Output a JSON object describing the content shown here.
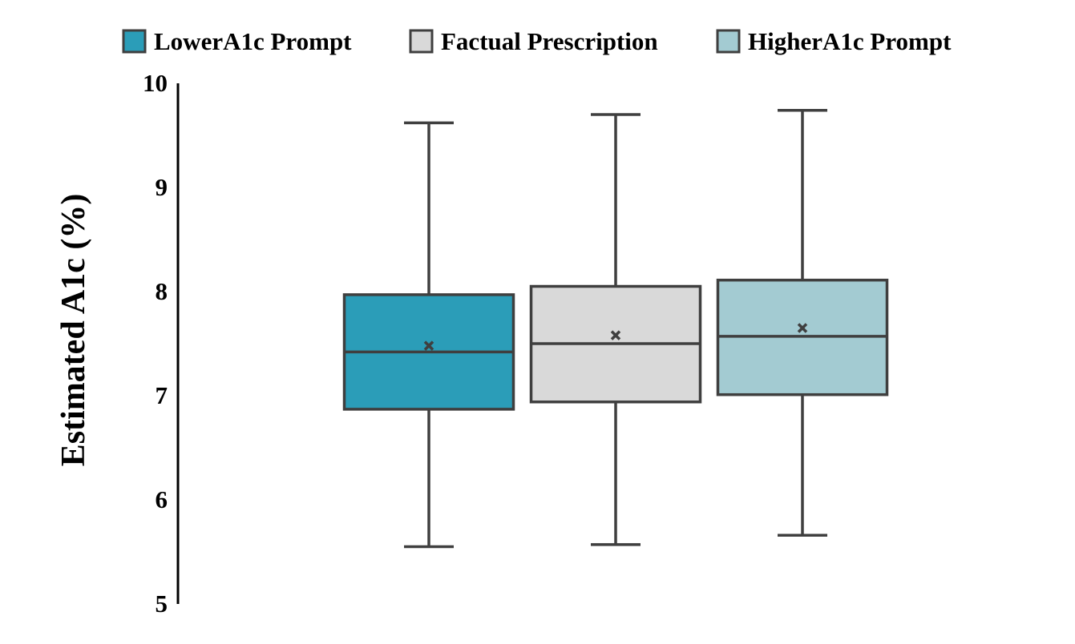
{
  "chart_data": {
    "type": "box",
    "ylabel": "Estimated A1c (%)",
    "ylim": [
      5,
      10
    ],
    "yticks": [
      5,
      6,
      7,
      8,
      9,
      10
    ],
    "grid": false,
    "legend_position": "top",
    "colors": {
      "box_stroke": "#3f3f3f",
      "axis": "#000000"
    },
    "series": [
      {
        "name": "LowerA1c Prompt",
        "color": "#2b9db8",
        "min": 5.55,
        "q1": 6.87,
        "median": 7.42,
        "mean": 7.48,
        "q3": 7.97,
        "max": 9.62
      },
      {
        "name": "Factual Prescription",
        "color": "#d9d9d9",
        "min": 5.57,
        "q1": 6.94,
        "median": 7.5,
        "mean": 7.58,
        "q3": 8.05,
        "max": 9.7
      },
      {
        "name": "HigherA1c Prompt",
        "color": "#a3cbd2",
        "min": 5.66,
        "q1": 7.01,
        "median": 7.57,
        "mean": 7.65,
        "q3": 8.11,
        "max": 9.74
      }
    ]
  }
}
